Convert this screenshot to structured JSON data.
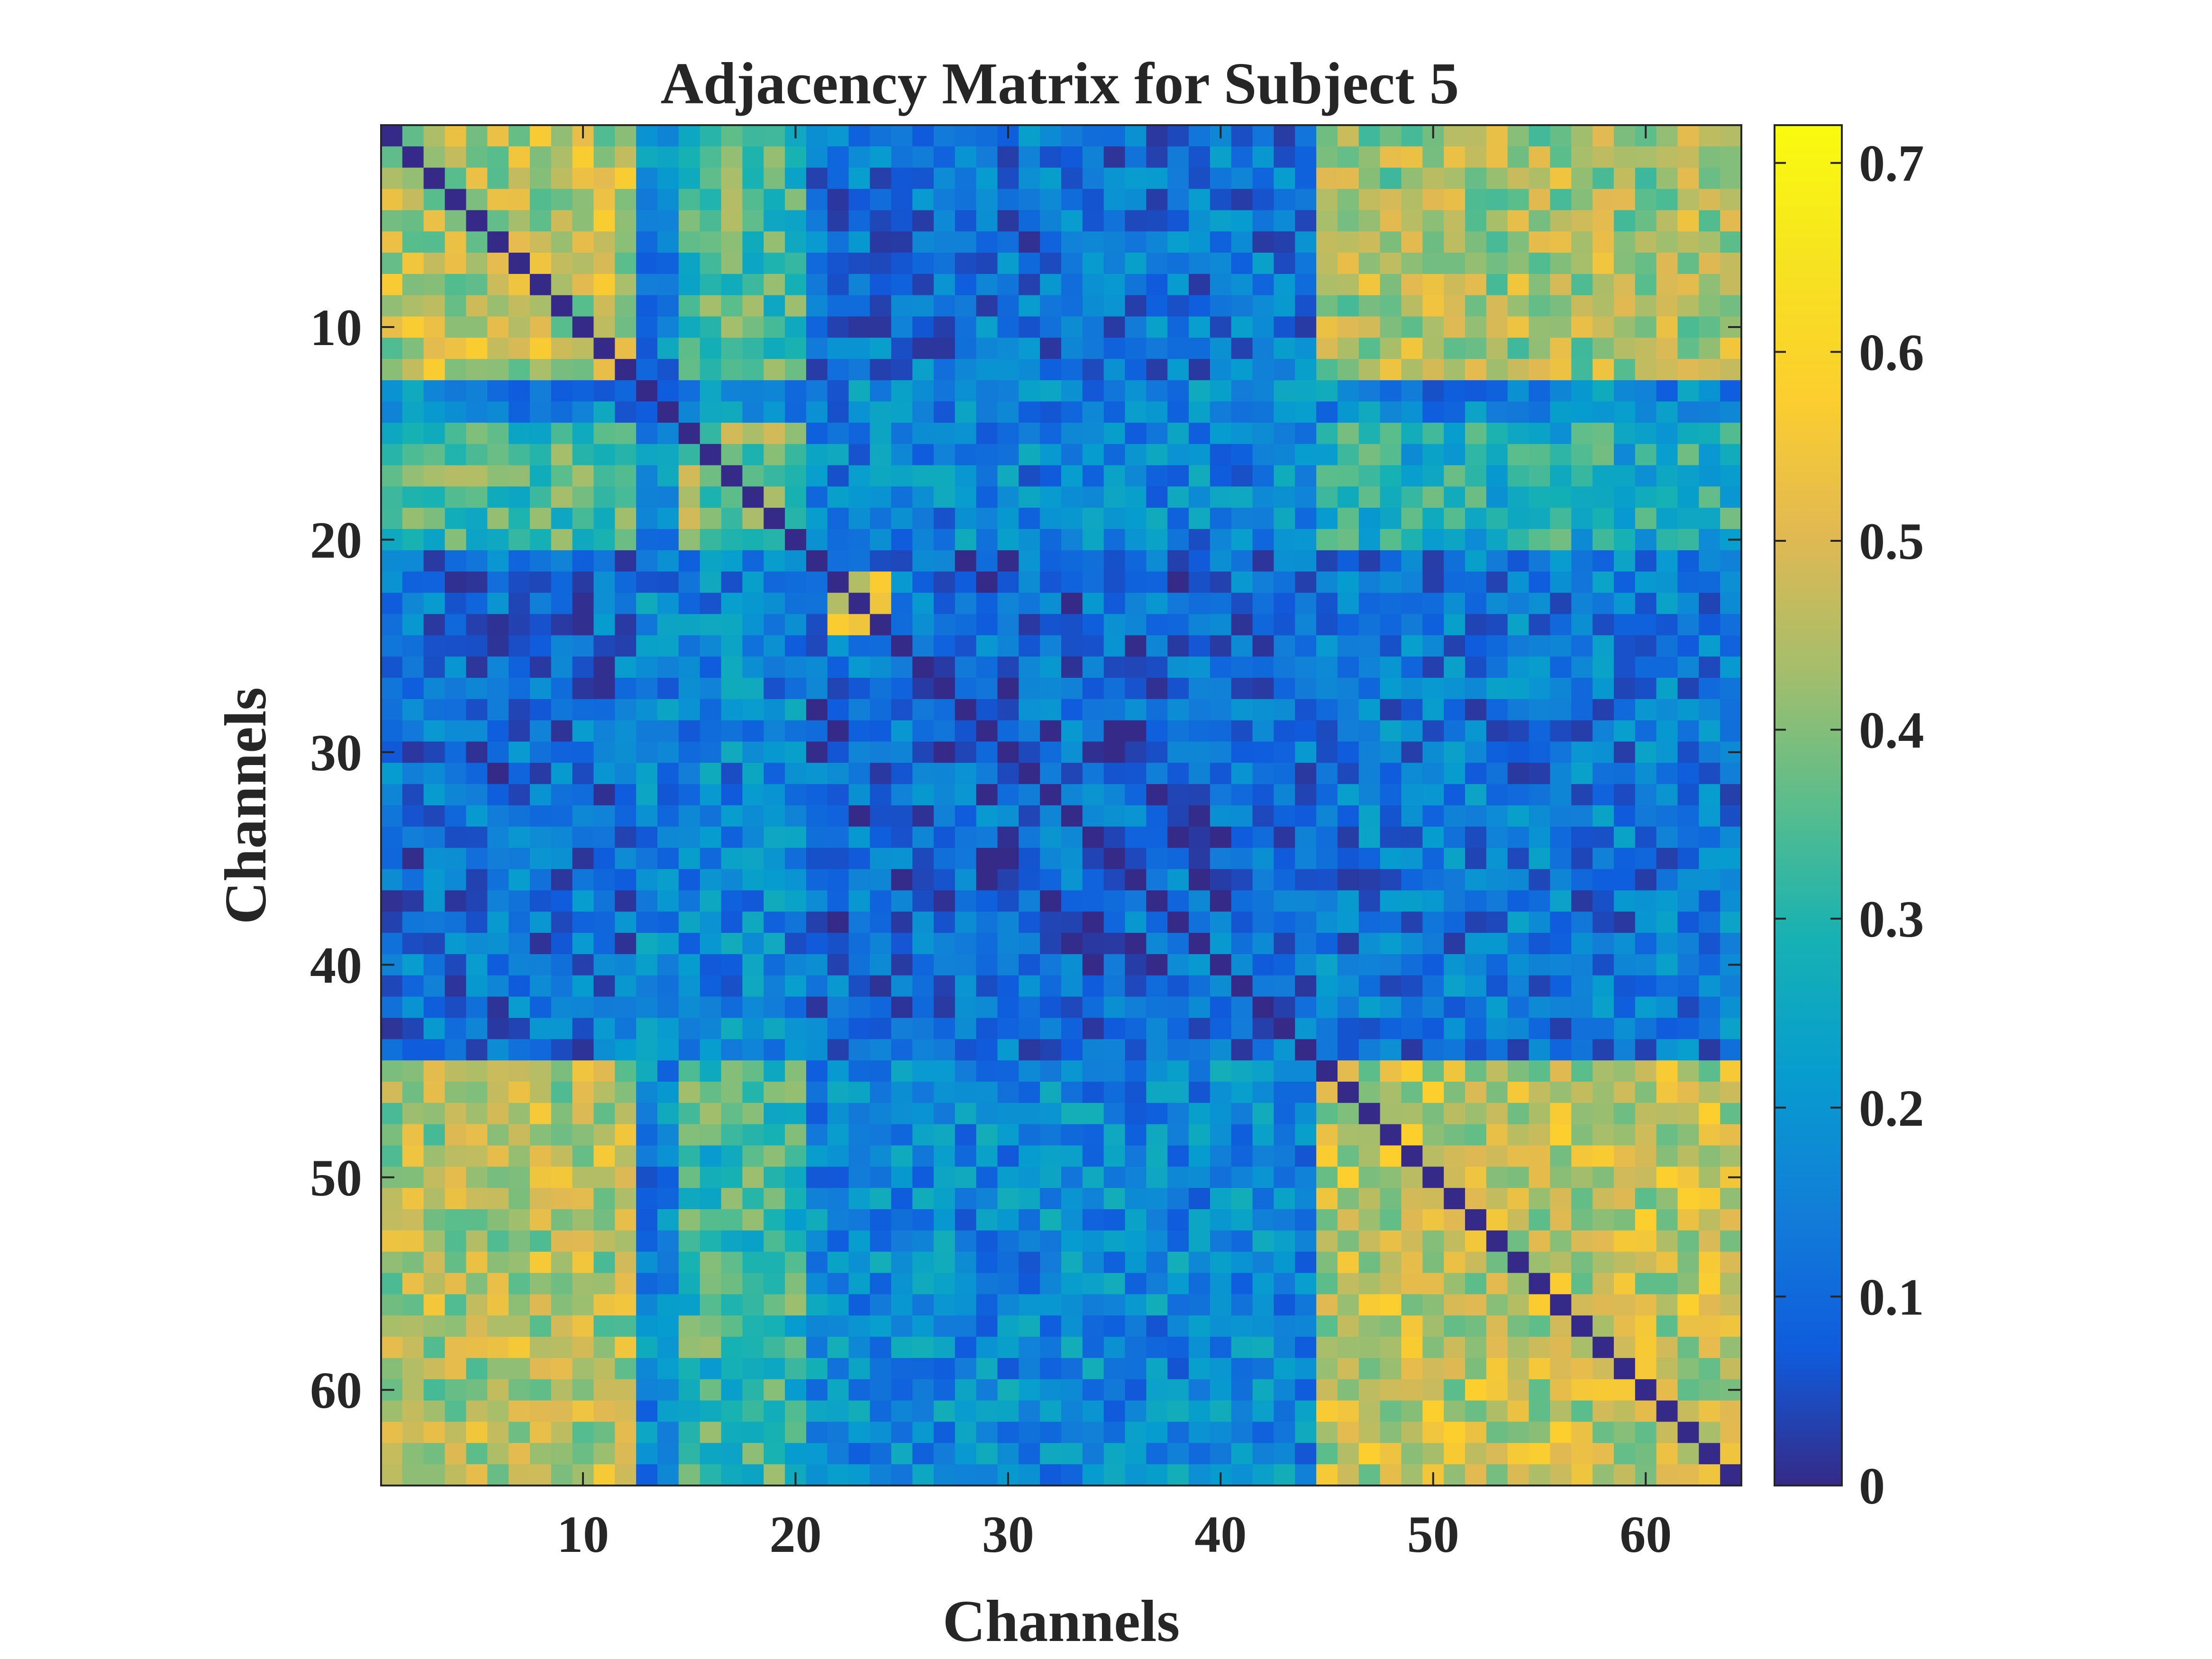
{
  "chart_data": {
    "type": "heatmap",
    "title": "Adjacency Matrix for Subject 5",
    "xlabel": "Channels",
    "ylabel": "Channels",
    "n": 64,
    "xlim": [
      0.5,
      64.5
    ],
    "ylim": [
      0.5,
      64.5
    ],
    "x_ticks": [
      10,
      20,
      30,
      40,
      50,
      60
    ],
    "y_ticks": [
      10,
      20,
      30,
      40,
      50,
      60
    ],
    "x_tick_labels": [
      "10",
      "20",
      "30",
      "40",
      "50",
      "60"
    ],
    "y_tick_labels": [
      "10",
      "20",
      "30",
      "40",
      "50",
      "60"
    ],
    "colorbar": {
      "range": [
        0,
        0.72
      ],
      "ticks": [
        0,
        0.1,
        0.2,
        0.3,
        0.4,
        0.5,
        0.6,
        0.7
      ],
      "tick_labels": [
        "0",
        "0.1",
        "0.2",
        "0.3",
        "0.4",
        "0.5",
        "0.6",
        "0.7"
      ],
      "colormap": "parula"
    },
    "diagonal_value": 0.0,
    "blocks": [
      {
        "rows": [
          1,
          12
        ],
        "cols": [
          1,
          12
        ],
        "value": 0.46
      },
      {
        "rows": [
          1,
          12
        ],
        "cols": [
          45,
          64
        ],
        "value": 0.44
      },
      {
        "rows": [
          45,
          64
        ],
        "cols": [
          1,
          12
        ],
        "value": 0.45
      },
      {
        "rows": [
          45,
          64
        ],
        "cols": [
          45,
          64
        ],
        "value": 0.47
      },
      {
        "rows": [
          15,
          20
        ],
        "cols": [
          15,
          20
        ],
        "value": 0.38
      },
      {
        "rows": [
          15,
          20
        ],
        "cols": [
          1,
          12
        ],
        "value": 0.34
      },
      {
        "rows": [
          1,
          12
        ],
        "cols": [
          15,
          20
        ],
        "value": 0.34
      },
      {
        "rows": [
          45,
          64
        ],
        "cols": [
          15,
          20
        ],
        "value": 0.32
      },
      {
        "rows": [
          15,
          20
        ],
        "cols": [
          45,
          64
        ],
        "value": 0.28
      },
      {
        "rows": [
          22,
          24
        ],
        "cols": [
          22,
          24
        ],
        "value": 0.5
      },
      {
        "rows": [
          1,
          12
        ],
        "cols": [
          21,
          44
        ],
        "value": 0.12
      },
      {
        "rows": [
          21,
          44
        ],
        "cols": [
          1,
          12
        ],
        "value": 0.11
      },
      {
        "rows": [
          21,
          44
        ],
        "cols": [
          21,
          44
        ],
        "value": 0.1
      },
      {
        "rows": [
          45,
          64
        ],
        "cols": [
          21,
          44
        ],
        "value": 0.17
      },
      {
        "rows": [
          21,
          44
        ],
        "cols": [
          45,
          64
        ],
        "value": 0.13
      }
    ],
    "default_value": 0.16
  }
}
